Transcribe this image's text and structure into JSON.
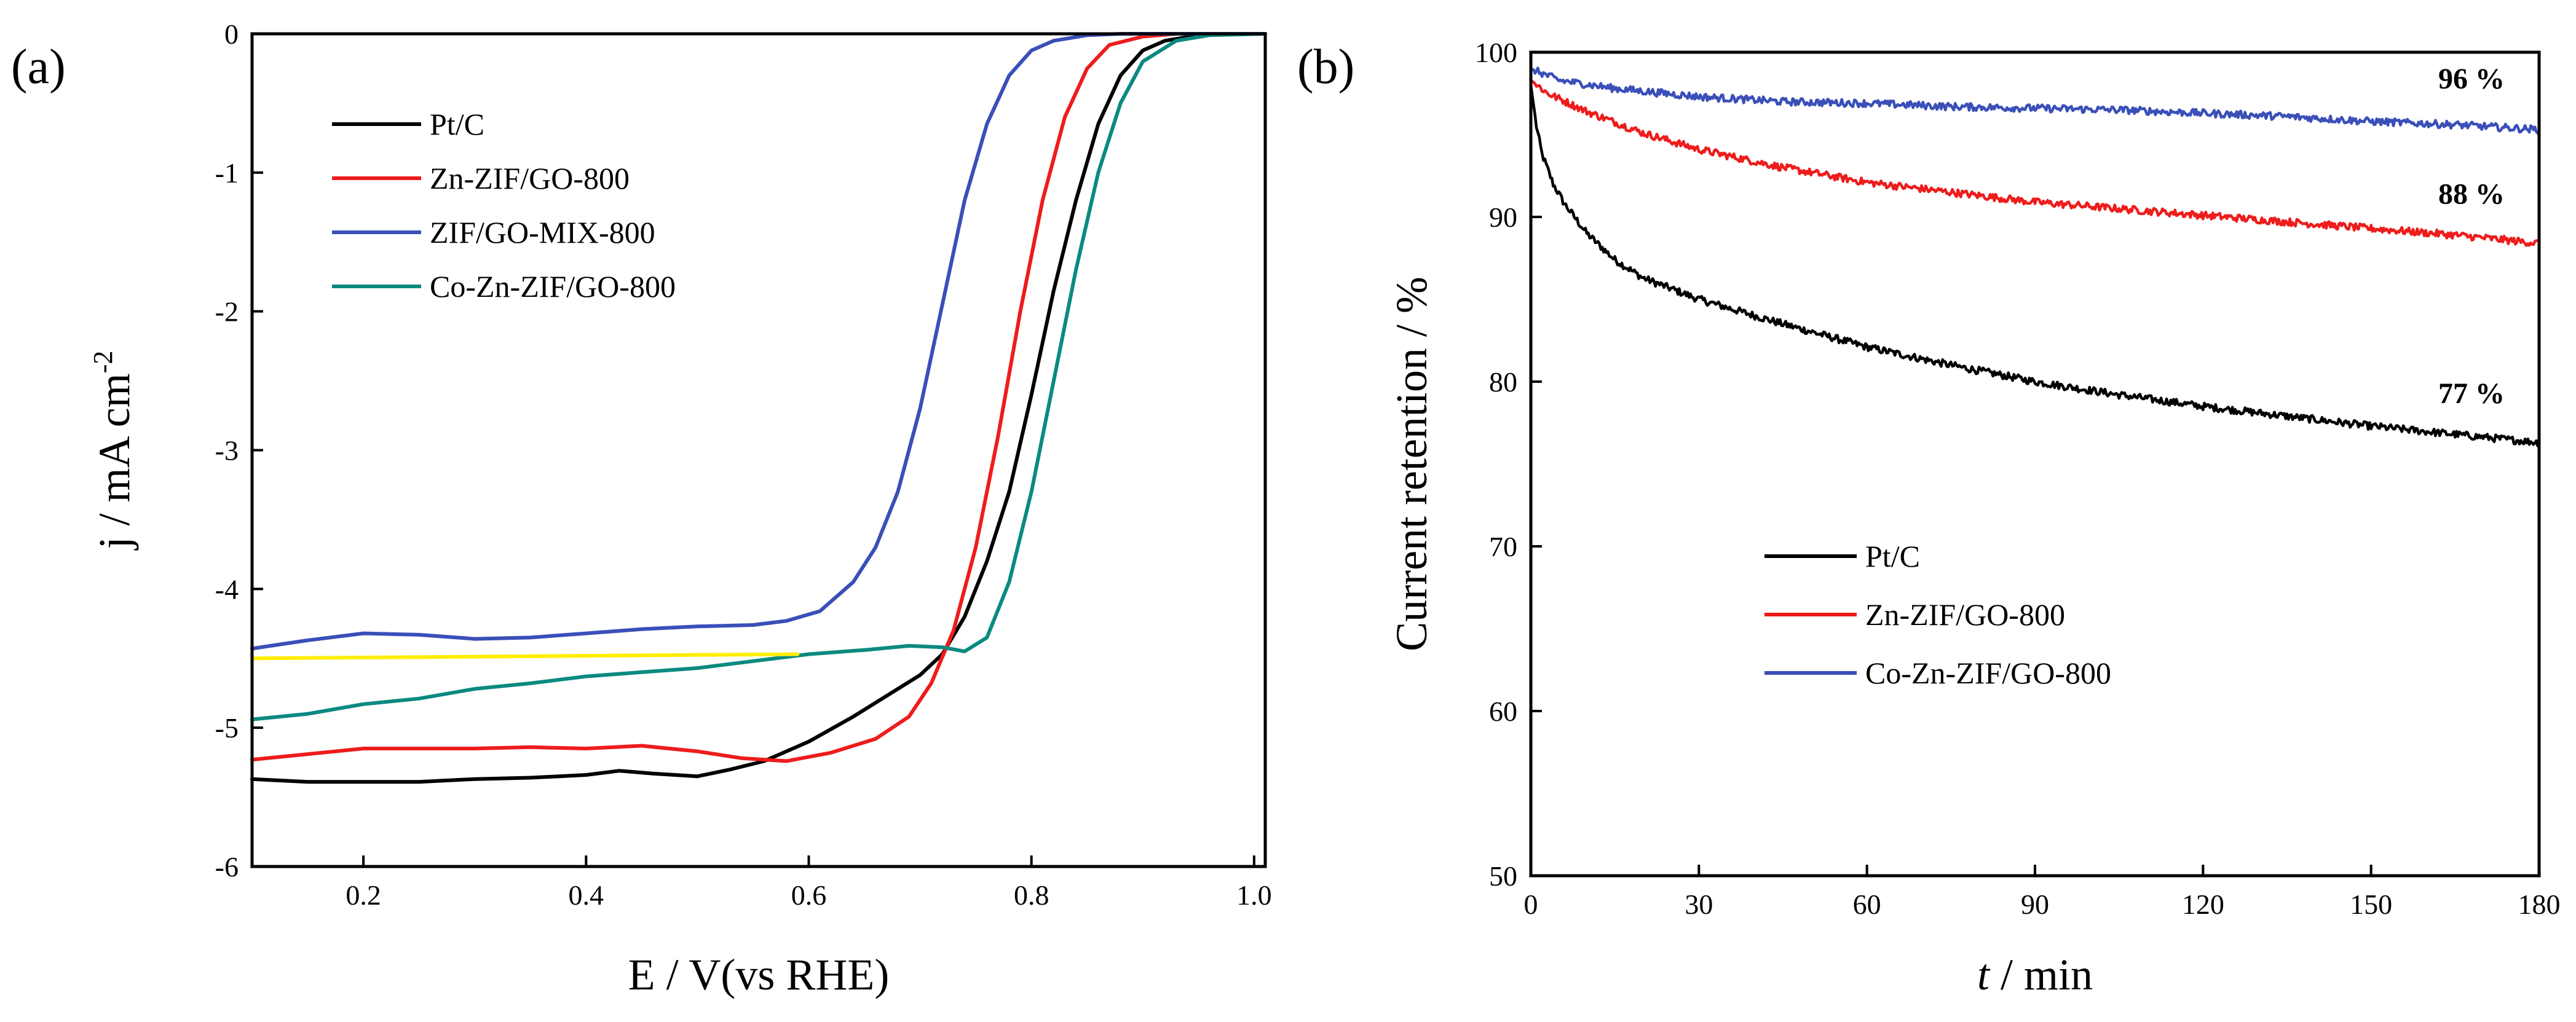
{
  "chart_data": [
    {
      "type": "line",
      "panel_label": "(a)",
      "xlabel": "E / V(vs RHE)",
      "ylabel": "j / mA cm",
      "ylabel_sup": "-2",
      "xlim": [
        0.1,
        1.01
      ],
      "ylim": [
        -6,
        0
      ],
      "xticks": [
        0.2,
        0.4,
        0.6,
        0.8,
        1.0
      ],
      "xtick_labels": [
        "0.2",
        "0.4",
        "0.6",
        "0.8",
        "1.0"
      ],
      "yticks": [
        0,
        -1,
        -2,
        -3,
        -4,
        -5,
        -6
      ],
      "ytick_labels": [
        "0",
        "-1",
        "-2",
        "-3",
        "-4",
        "-5",
        "-6"
      ],
      "legend_position": "upper-left",
      "series": [
        {
          "name": "Pt/C",
          "color": "#000000",
          "points": [
            [
              0.1,
              -5.37
            ],
            [
              0.15,
              -5.39
            ],
            [
              0.2,
              -5.39
            ],
            [
              0.25,
              -5.39
            ],
            [
              0.3,
              -5.37
            ],
            [
              0.35,
              -5.36
            ],
            [
              0.4,
              -5.34
            ],
            [
              0.43,
              -5.31
            ],
            [
              0.46,
              -5.33
            ],
            [
              0.5,
              -5.35
            ],
            [
              0.53,
              -5.3
            ],
            [
              0.56,
              -5.24
            ],
            [
              0.6,
              -5.1
            ],
            [
              0.64,
              -4.92
            ],
            [
              0.68,
              -4.72
            ],
            [
              0.7,
              -4.62
            ],
            [
              0.72,
              -4.47
            ],
            [
              0.74,
              -4.2
            ],
            [
              0.76,
              -3.8
            ],
            [
              0.78,
              -3.3
            ],
            [
              0.8,
              -2.6
            ],
            [
              0.82,
              -1.85
            ],
            [
              0.84,
              -1.2
            ],
            [
              0.86,
              -0.65
            ],
            [
              0.88,
              -0.3
            ],
            [
              0.9,
              -0.12
            ],
            [
              0.92,
              -0.05
            ],
            [
              0.95,
              -0.01
            ],
            [
              1.01,
              0.0
            ]
          ]
        },
        {
          "name": "Zn-ZIF/GO-800",
          "color": "#ee1c1c",
          "points": [
            [
              0.1,
              -5.23
            ],
            [
              0.15,
              -5.19
            ],
            [
              0.2,
              -5.15
            ],
            [
              0.25,
              -5.15
            ],
            [
              0.3,
              -5.15
            ],
            [
              0.35,
              -5.14
            ],
            [
              0.4,
              -5.15
            ],
            [
              0.45,
              -5.13
            ],
            [
              0.5,
              -5.17
            ],
            [
              0.54,
              -5.22
            ],
            [
              0.58,
              -5.24
            ],
            [
              0.62,
              -5.18
            ],
            [
              0.66,
              -5.08
            ],
            [
              0.69,
              -4.92
            ],
            [
              0.71,
              -4.68
            ],
            [
              0.73,
              -4.3
            ],
            [
              0.75,
              -3.7
            ],
            [
              0.77,
              -2.9
            ],
            [
              0.79,
              -2.0
            ],
            [
              0.81,
              -1.2
            ],
            [
              0.83,
              -0.6
            ],
            [
              0.85,
              -0.25
            ],
            [
              0.87,
              -0.08
            ],
            [
              0.9,
              -0.02
            ],
            [
              0.93,
              0.0
            ],
            [
              1.01,
              0.0
            ]
          ]
        },
        {
          "name": "ZIF/GO-MIX-800",
          "color": "#3a4fb8",
          "points": [
            [
              0.1,
              -4.43
            ],
            [
              0.15,
              -4.37
            ],
            [
              0.2,
              -4.32
            ],
            [
              0.25,
              -4.33
            ],
            [
              0.3,
              -4.36
            ],
            [
              0.35,
              -4.35
            ],
            [
              0.4,
              -4.32
            ],
            [
              0.45,
              -4.29
            ],
            [
              0.5,
              -4.27
            ],
            [
              0.55,
              -4.26
            ],
            [
              0.58,
              -4.23
            ],
            [
              0.61,
              -4.16
            ],
            [
              0.64,
              -3.95
            ],
            [
              0.66,
              -3.7
            ],
            [
              0.68,
              -3.3
            ],
            [
              0.7,
              -2.7
            ],
            [
              0.72,
              -1.95
            ],
            [
              0.74,
              -1.2
            ],
            [
              0.76,
              -0.65
            ],
            [
              0.78,
              -0.3
            ],
            [
              0.8,
              -0.12
            ],
            [
              0.82,
              -0.05
            ],
            [
              0.85,
              -0.01
            ],
            [
              0.88,
              0.0
            ],
            [
              1.01,
              0.0
            ]
          ]
        },
        {
          "name": "Co-Zn-ZIF/GO-800",
          "color": "#0a8a80",
          "points": [
            [
              0.1,
              -4.94
            ],
            [
              0.15,
              -4.9
            ],
            [
              0.2,
              -4.83
            ],
            [
              0.25,
              -4.79
            ],
            [
              0.3,
              -4.72
            ],
            [
              0.35,
              -4.68
            ],
            [
              0.4,
              -4.63
            ],
            [
              0.45,
              -4.6
            ],
            [
              0.5,
              -4.57
            ],
            [
              0.55,
              -4.52
            ],
            [
              0.6,
              -4.47
            ],
            [
              0.65,
              -4.44
            ],
            [
              0.69,
              -4.41
            ],
            [
              0.72,
              -4.42
            ],
            [
              0.74,
              -4.45
            ],
            [
              0.76,
              -4.35
            ],
            [
              0.78,
              -3.95
            ],
            [
              0.8,
              -3.3
            ],
            [
              0.82,
              -2.5
            ],
            [
              0.84,
              -1.7
            ],
            [
              0.86,
              -1.0
            ],
            [
              0.88,
              -0.5
            ],
            [
              0.9,
              -0.2
            ],
            [
              0.93,
              -0.05
            ],
            [
              0.96,
              -0.01
            ],
            [
              1.01,
              0.0
            ]
          ]
        },
        {
          "color": "#ffee00",
          "points": [
            [
              0.1,
              -4.5
            ],
            [
              0.59,
              -4.47
            ]
          ]
        }
      ]
    },
    {
      "type": "line",
      "panel_label": "(b)",
      "xlabel_italic": "t",
      "xlabel_rest": " / min",
      "ylabel": "Current retention / %",
      "xlim": [
        0,
        180
      ],
      "ylim": [
        50,
        100
      ],
      "xticks": [
        0,
        30,
        60,
        90,
        120,
        150,
        180
      ],
      "xtick_labels": [
        "0",
        "30",
        "60",
        "90",
        "120",
        "150",
        "180"
      ],
      "yticks": [
        50,
        60,
        70,
        80,
        90,
        100
      ],
      "ytick_labels": [
        "50",
        "60",
        "70",
        "80",
        "90",
        "100"
      ],
      "legend_position": "lower-left",
      "annotations": [
        {
          "text": "96 %",
          "x": 162,
          "y": 97.8
        },
        {
          "text": "88 %",
          "x": 162,
          "y": 90.8
        },
        {
          "text": "77 %",
          "x": 162,
          "y": 78.7
        }
      ],
      "series": [
        {
          "name": "Pt/C",
          "color": "#000000",
          "points": [
            [
              0,
              98.0
            ],
            [
              1,
              95.5
            ],
            [
              2,
              93.8
            ],
            [
              4,
              92.0
            ],
            [
              6,
              90.8
            ],
            [
              10,
              89.0
            ],
            [
              15,
              87.4
            ],
            [
              20,
              86.3
            ],
            [
              30,
              85.0
            ],
            [
              45,
              83.5
            ],
            [
              60,
              82.1
            ],
            [
              75,
              81.0
            ],
            [
              90,
              80.0
            ],
            [
              105,
              79.2
            ],
            [
              120,
              78.5
            ],
            [
              135,
              77.9
            ],
            [
              150,
              77.3
            ],
            [
              165,
              76.8
            ],
            [
              180,
              76.3
            ]
          ]
        },
        {
          "name": "Zn-ZIF/GO-800",
          "color": "#ee1c1c",
          "points": [
            [
              0,
              98.3
            ],
            [
              3,
              97.5
            ],
            [
              10,
              96.4
            ],
            [
              20,
              95.1
            ],
            [
              30,
              94.1
            ],
            [
              45,
              93.0
            ],
            [
              60,
              92.1
            ],
            [
              75,
              91.5
            ],
            [
              90,
              90.9
            ],
            [
              105,
              90.5
            ],
            [
              120,
              90.1
            ],
            [
              135,
              89.7
            ],
            [
              150,
              89.3
            ],
            [
              165,
              88.9
            ],
            [
              180,
              88.4
            ]
          ]
        },
        {
          "name": "Co-Zn-ZIF/GO-800",
          "color": "#3a4fb8",
          "points": [
            [
              0,
              99.0
            ],
            [
              5,
              98.3
            ],
            [
              15,
              97.8
            ],
            [
              30,
              97.3
            ],
            [
              45,
              97.0
            ],
            [
              60,
              96.9
            ],
            [
              75,
              96.7
            ],
            [
              90,
              96.6
            ],
            [
              105,
              96.5
            ],
            [
              120,
              96.3
            ],
            [
              135,
              96.1
            ],
            [
              150,
              95.8
            ],
            [
              165,
              95.6
            ],
            [
              180,
              95.3
            ]
          ]
        }
      ]
    }
  ]
}
